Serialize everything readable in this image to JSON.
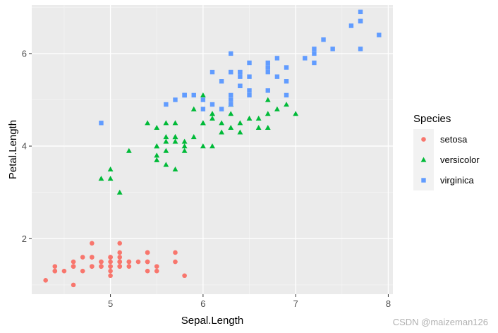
{
  "chart_data": {
    "type": "scatter",
    "title": "",
    "xlabel": "Sepal.Length",
    "ylabel": "Petal.Length",
    "xlim": [
      4.15,
      8.05
    ],
    "ylim": [
      0.8,
      7.05
    ],
    "x_ticks": [
      5,
      6,
      7,
      8
    ],
    "y_ticks": [
      2,
      4,
      6
    ],
    "grid": true,
    "legend": {
      "title": "Species",
      "position": "right"
    },
    "series": [
      {
        "name": "setosa",
        "color": "#F8766D",
        "shape": "circle",
        "points": [
          [
            5.1,
            1.4
          ],
          [
            4.9,
            1.4
          ],
          [
            4.7,
            1.3
          ],
          [
            4.6,
            1.5
          ],
          [
            5.0,
            1.4
          ],
          [
            5.4,
            1.7
          ],
          [
            4.6,
            1.4
          ],
          [
            5.0,
            1.5
          ],
          [
            4.4,
            1.4
          ],
          [
            4.9,
            1.5
          ],
          [
            5.4,
            1.5
          ],
          [
            4.8,
            1.6
          ],
          [
            4.8,
            1.4
          ],
          [
            4.3,
            1.1
          ],
          [
            5.8,
            1.2
          ],
          [
            5.7,
            1.5
          ],
          [
            5.4,
            1.3
          ],
          [
            5.1,
            1.4
          ],
          [
            5.7,
            1.7
          ],
          [
            5.1,
            1.5
          ],
          [
            5.4,
            1.7
          ],
          [
            5.1,
            1.5
          ],
          [
            4.6,
            1.0
          ],
          [
            5.1,
            1.7
          ],
          [
            4.8,
            1.9
          ],
          [
            5.0,
            1.6
          ],
          [
            5.0,
            1.6
          ],
          [
            5.2,
            1.5
          ],
          [
            5.2,
            1.4
          ],
          [
            4.7,
            1.6
          ],
          [
            4.8,
            1.6
          ],
          [
            5.4,
            1.5
          ],
          [
            5.2,
            1.5
          ],
          [
            5.5,
            1.4
          ],
          [
            4.9,
            1.5
          ],
          [
            5.0,
            1.2
          ],
          [
            5.5,
            1.3
          ],
          [
            4.9,
            1.4
          ],
          [
            4.4,
            1.3
          ],
          [
            5.1,
            1.5
          ],
          [
            5.0,
            1.3
          ],
          [
            4.5,
            1.3
          ],
          [
            4.4,
            1.3
          ],
          [
            5.0,
            1.6
          ],
          [
            5.1,
            1.9
          ],
          [
            4.8,
            1.4
          ],
          [
            5.1,
            1.6
          ],
          [
            4.6,
            1.4
          ],
          [
            5.3,
            1.5
          ],
          [
            5.0,
            1.4
          ]
        ]
      },
      {
        "name": "versicolor",
        "color": "#00BA38",
        "shape": "triangle",
        "points": [
          [
            7.0,
            4.7
          ],
          [
            6.4,
            4.5
          ],
          [
            6.9,
            4.9
          ],
          [
            5.5,
            4.0
          ],
          [
            6.5,
            4.6
          ],
          [
            5.7,
            4.5
          ],
          [
            6.3,
            4.7
          ],
          [
            4.9,
            3.3
          ],
          [
            6.6,
            4.6
          ],
          [
            5.2,
            3.9
          ],
          [
            5.0,
            3.5
          ],
          [
            5.9,
            4.2
          ],
          [
            6.0,
            4.0
          ],
          [
            6.1,
            4.7
          ],
          [
            5.6,
            3.6
          ],
          [
            6.7,
            4.4
          ],
          [
            5.6,
            4.5
          ],
          [
            5.8,
            4.1
          ],
          [
            6.2,
            4.5
          ],
          [
            5.6,
            3.9
          ],
          [
            5.9,
            4.8
          ],
          [
            6.1,
            4.0
          ],
          [
            6.3,
            4.9
          ],
          [
            6.1,
            4.7
          ],
          [
            6.4,
            4.3
          ],
          [
            6.6,
            4.4
          ],
          [
            6.8,
            4.8
          ],
          [
            6.7,
            5.0
          ],
          [
            6.0,
            4.5
          ],
          [
            5.7,
            3.5
          ],
          [
            5.5,
            3.8
          ],
          [
            5.5,
            3.7
          ],
          [
            5.8,
            3.9
          ],
          [
            6.0,
            5.1
          ],
          [
            5.4,
            4.5
          ],
          [
            6.0,
            4.5
          ],
          [
            6.7,
            4.7
          ],
          [
            6.3,
            4.4
          ],
          [
            5.6,
            4.1
          ],
          [
            5.5,
            4.0
          ],
          [
            5.5,
            4.4
          ],
          [
            6.1,
            4.6
          ],
          [
            5.8,
            4.0
          ],
          [
            5.0,
            3.3
          ],
          [
            5.6,
            4.2
          ],
          [
            5.7,
            4.2
          ],
          [
            5.7,
            4.2
          ],
          [
            6.2,
            4.3
          ],
          [
            5.1,
            3.0
          ],
          [
            5.7,
            4.1
          ]
        ]
      },
      {
        "name": "virginica",
        "color": "#619CFF",
        "shape": "square",
        "points": [
          [
            6.3,
            6.0
          ],
          [
            5.8,
            5.1
          ],
          [
            7.1,
            5.9
          ],
          [
            6.3,
            5.6
          ],
          [
            6.5,
            5.8
          ],
          [
            7.6,
            6.6
          ],
          [
            4.9,
            4.5
          ],
          [
            7.3,
            6.3
          ],
          [
            6.7,
            5.8
          ],
          [
            7.2,
            6.1
          ],
          [
            6.5,
            5.1
          ],
          [
            6.4,
            5.3
          ],
          [
            6.8,
            5.5
          ],
          [
            5.7,
            5.0
          ],
          [
            5.8,
            5.1
          ],
          [
            6.4,
            5.3
          ],
          [
            6.5,
            5.5
          ],
          [
            7.7,
            6.7
          ],
          [
            7.7,
            6.9
          ],
          [
            6.0,
            5.0
          ],
          [
            6.9,
            5.7
          ],
          [
            5.6,
            4.9
          ],
          [
            7.7,
            6.7
          ],
          [
            6.3,
            4.9
          ],
          [
            6.7,
            5.7
          ],
          [
            7.2,
            6.0
          ],
          [
            6.2,
            4.8
          ],
          [
            6.1,
            4.9
          ],
          [
            6.4,
            5.6
          ],
          [
            7.2,
            5.8
          ],
          [
            7.4,
            6.1
          ],
          [
            7.9,
            6.4
          ],
          [
            6.4,
            5.6
          ],
          [
            6.3,
            5.1
          ],
          [
            6.1,
            5.6
          ],
          [
            7.7,
            6.1
          ],
          [
            6.3,
            5.6
          ],
          [
            6.4,
            5.5
          ],
          [
            6.0,
            4.8
          ],
          [
            6.9,
            5.4
          ],
          [
            6.7,
            5.6
          ],
          [
            6.9,
            5.1
          ],
          [
            5.8,
            5.1
          ],
          [
            6.8,
            5.9
          ],
          [
            6.7,
            5.7
          ],
          [
            6.7,
            5.2
          ],
          [
            6.3,
            5.0
          ],
          [
            6.5,
            5.2
          ],
          [
            6.2,
            5.4
          ],
          [
            5.9,
            5.1
          ]
        ]
      }
    ]
  },
  "watermark": "CSDN @maizeman126"
}
